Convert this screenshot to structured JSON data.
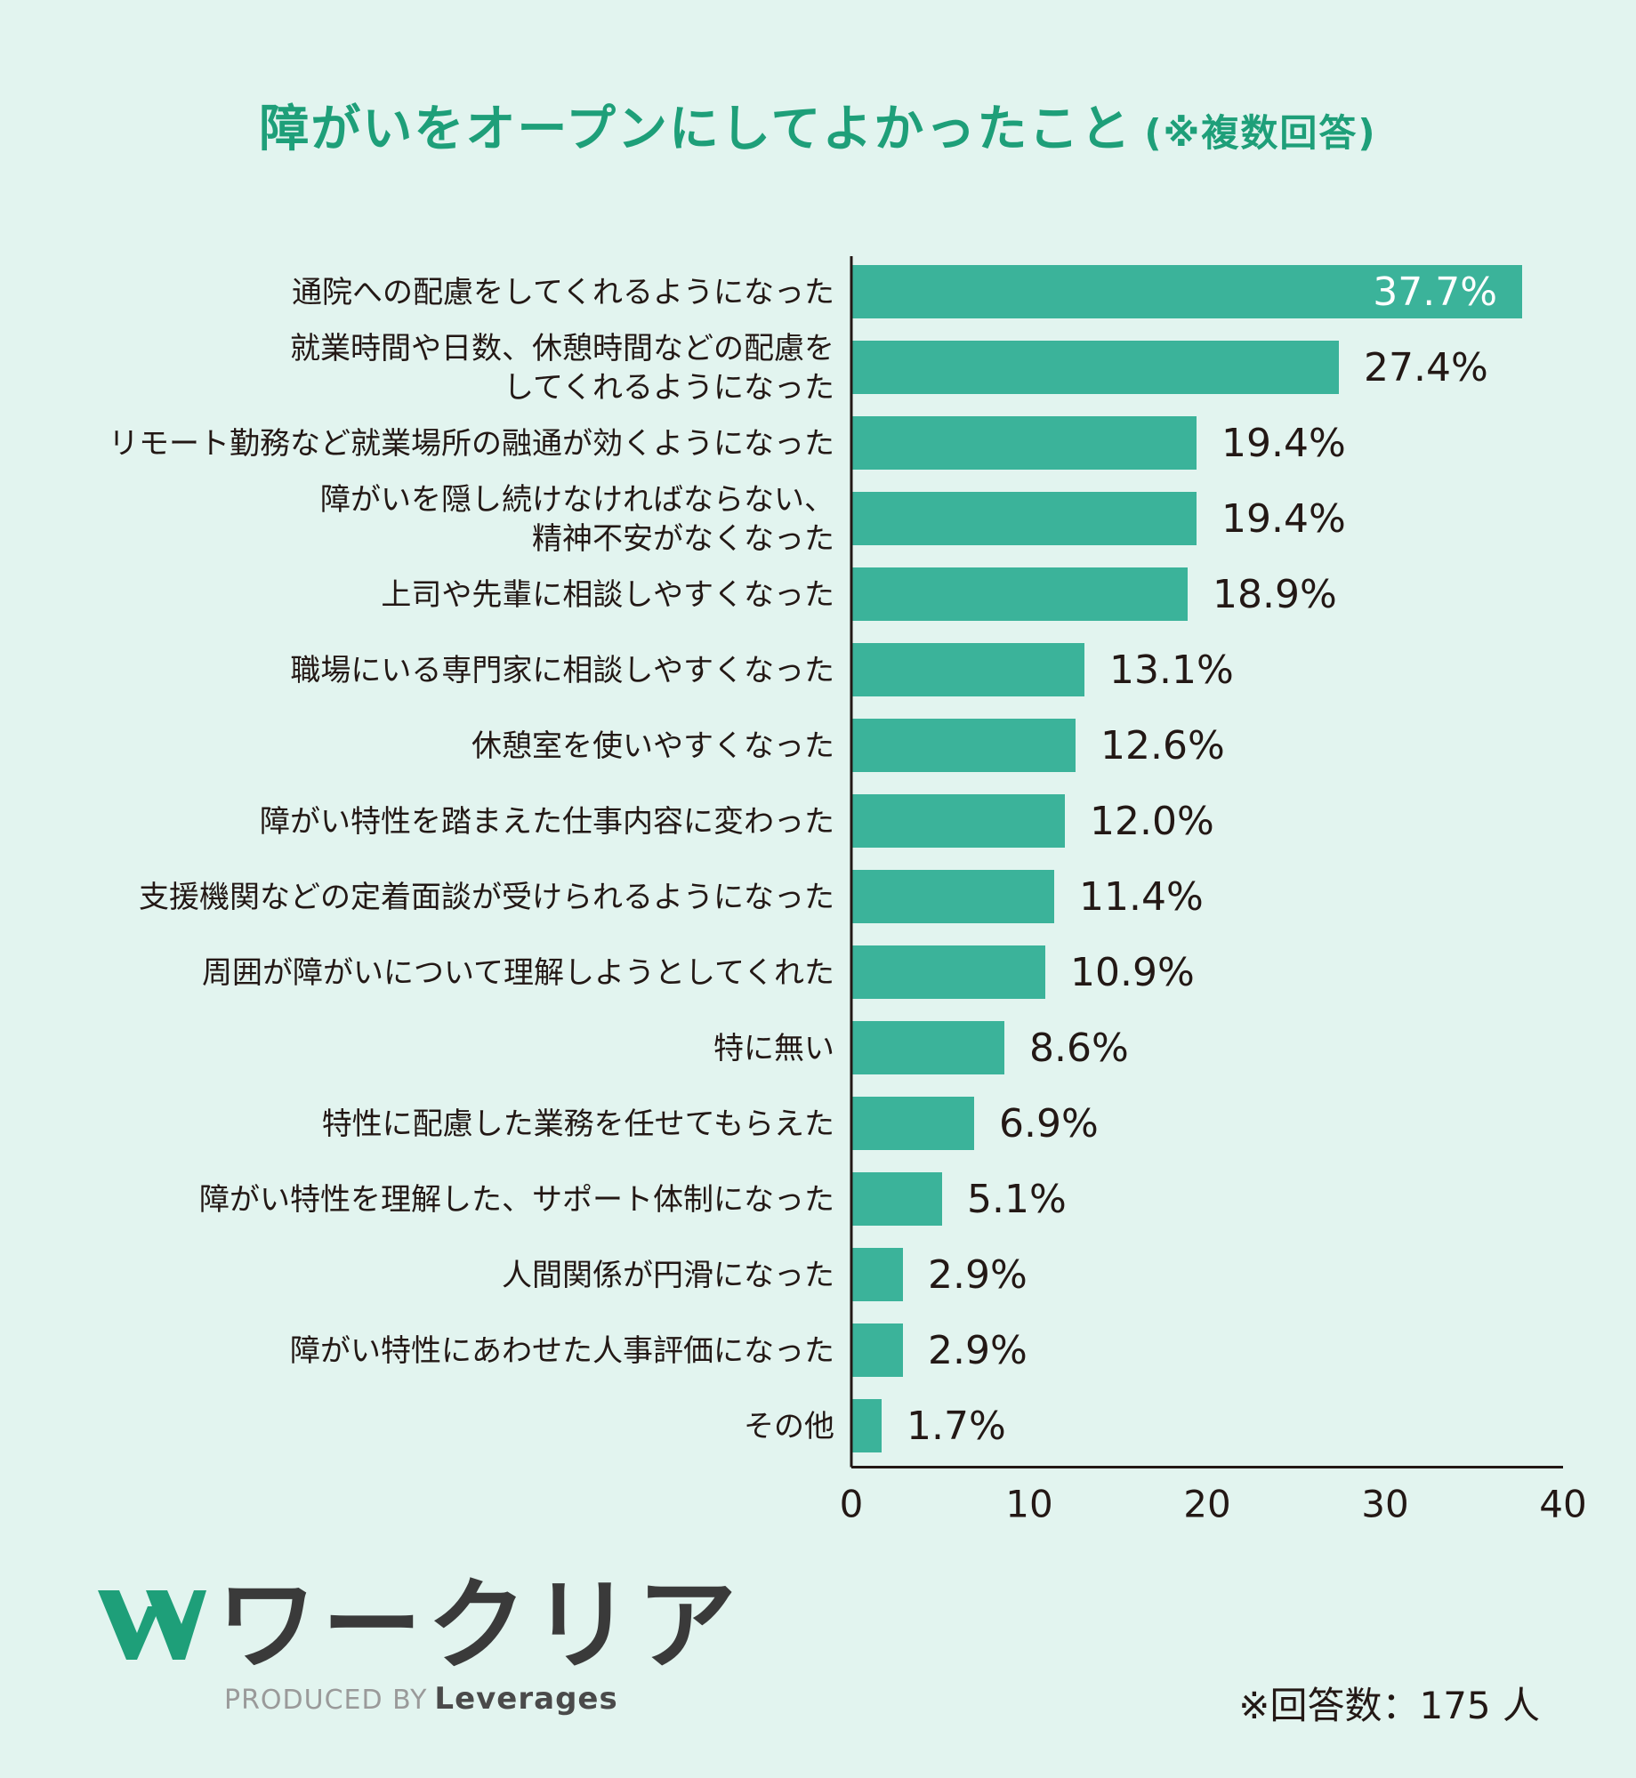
{
  "chart_data": {
    "type": "bar",
    "orientation": "horizontal",
    "title": "障がいをオープンにしてよかったこと",
    "subtitle": "(※複数回答)",
    "categories": [
      [
        "通院への配慮をしてくれるようになった"
      ],
      [
        "就業時間や日数、休憩時間などの配慮を",
        "してくれるようになった"
      ],
      [
        "リモート勤務など就業場所の融通が効くようになった"
      ],
      [
        "障がいを隠し続けなければならない、",
        "精神不安がなくなった"
      ],
      [
        "上司や先輩に相談しやすくなった"
      ],
      [
        "職場にいる専門家に相談しやすくなった"
      ],
      [
        "休憩室を使いやすくなった"
      ],
      [
        "障がい特性を踏まえた仕事内容に変わった"
      ],
      [
        "支援機関などの定着面談が受けられるようになった"
      ],
      [
        "周囲が障がいについて理解しようとしてくれた"
      ],
      [
        "特に無い"
      ],
      [
        "特性に配慮した業務を任せてもらえた"
      ],
      [
        "障がい特性を理解した、サポート体制になった"
      ],
      [
        "人間関係が円滑になった"
      ],
      [
        "障がい特性にあわせた人事評価になった"
      ],
      [
        "その他"
      ]
    ],
    "values": [
      37.7,
      27.4,
      19.4,
      19.4,
      18.9,
      13.1,
      12.6,
      12.0,
      11.4,
      10.9,
      8.6,
      6.9,
      5.1,
      2.9,
      2.9,
      1.7
    ],
    "value_labels": [
      "37.7%",
      "27.4%",
      "19.4%",
      "19.4%",
      "18.9%",
      "13.1%",
      "12.6%",
      "12.0%",
      "11.4%",
      "10.9%",
      "8.6%",
      "6.9%",
      "5.1%",
      "2.9%",
      "2.9%",
      "1.7%"
    ],
    "xlim": [
      0,
      40
    ],
    "xticks": [
      0,
      10,
      20,
      30,
      40
    ],
    "xlabel": "",
    "ylabel": "",
    "grid": false,
    "bar_color": "#3bb39a"
  },
  "logo": {
    "text": "ワークリア",
    "produced_by": "PRODUCED BY",
    "brand": "Leverages",
    "mark_color": "#1e9f79"
  },
  "footnote": "※回答数：175 人"
}
